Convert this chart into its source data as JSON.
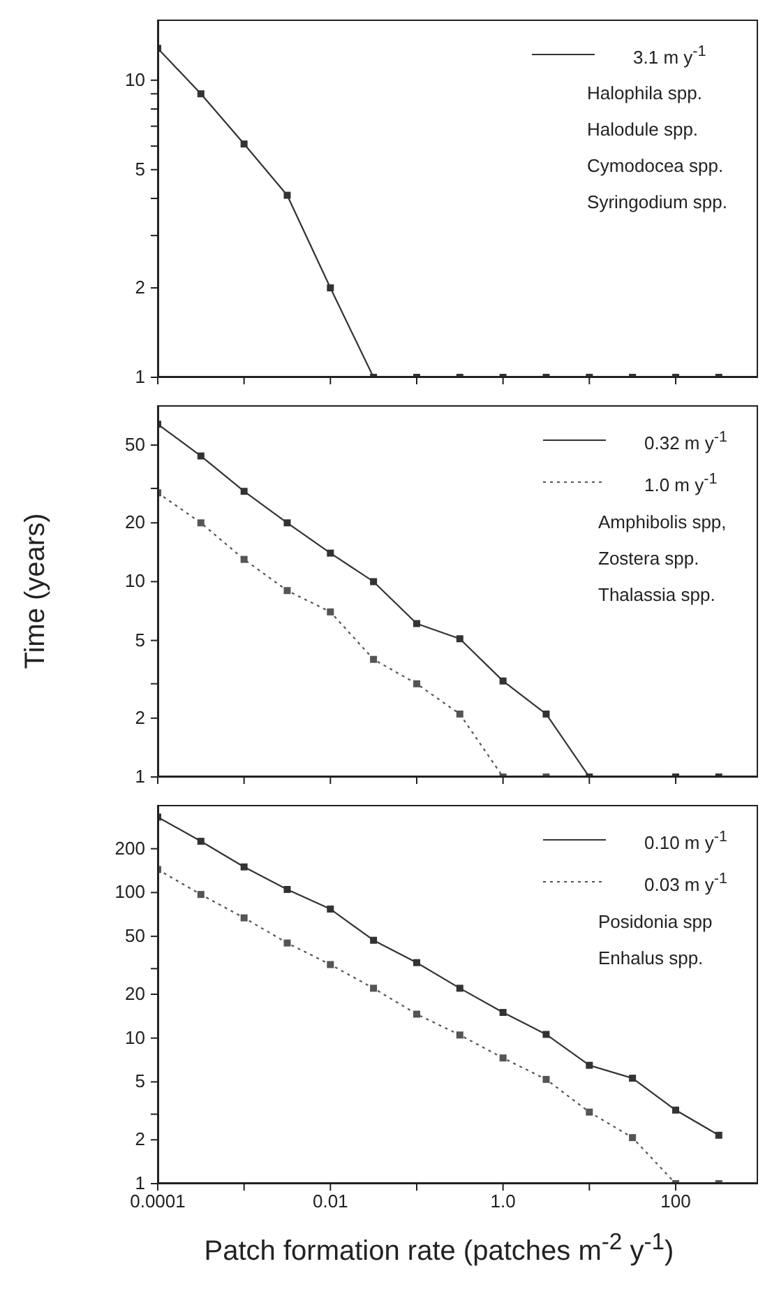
{
  "chart_data": [
    {
      "type": "line",
      "x": [
        0.0001,
        0.000316,
        0.001,
        0.00316,
        0.01,
        0.0316,
        0.1,
        0.316,
        1,
        3.16,
        10,
        31.6,
        100,
        316
      ],
      "xlim": [
        0.0001,
        900
      ],
      "xticks": [
        {
          "value": 0.0001,
          "label": null
        },
        {
          "value": 0.001,
          "label": null
        },
        {
          "value": 0.01,
          "label": null
        },
        {
          "value": 0.1,
          "label": null
        },
        {
          "value": 1,
          "label": null
        },
        {
          "value": 10,
          "label": null
        },
        {
          "value": 100,
          "label": null
        }
      ],
      "ylim": [
        1,
        16
      ],
      "yticks": [
        1,
        2,
        {
          "value": 3,
          "label": null
        },
        {
          "value": 4,
          "label": null
        },
        5,
        {
          "value": 6,
          "label": null
        },
        {
          "value": 7,
          "label": null
        },
        {
          "value": 8,
          "label": null
        },
        {
          "value": 9,
          "label": null
        },
        10
      ],
      "log": "xy",
      "tick_labels": "y",
      "marker": "square",
      "legend": "top right",
      "series": [
        {
          "name": "3.1 m y$^{-1}$",
          "color": "#333333",
          "line_style": "solid",
          "values": [
            12.8,
            9.0,
            6.1,
            4.1,
            2.0,
            1,
            1,
            1,
            1,
            1,
            1,
            1,
            1,
            1
          ]
        }
      ],
      "annotations": [
        "Halophila spp.",
        "Halodule spp.",
        "Cymodocea spp.",
        "Syringodium spp."
      ]
    },
    {
      "type": "line",
      "x": [
        0.0001,
        0.000316,
        0.001,
        0.00316,
        0.01,
        0.0316,
        0.1,
        0.316,
        1,
        3.16,
        10,
        31.6,
        100,
        316
      ],
      "xlim": [
        0.0001,
        900
      ],
      "xticks": [
        {
          "value": 0.0001,
          "label": null
        },
        {
          "value": 0.001,
          "label": null
        },
        {
          "value": 0.01,
          "label": null
        },
        {
          "value": 0.1,
          "label": null
        },
        {
          "value": 1,
          "label": null
        },
        {
          "value": 10,
          "label": null
        },
        {
          "value": 100,
          "label": null
        }
      ],
      "ylim": [
        1,
        80
      ],
      "yticks": [
        1,
        2,
        {
          "value": 3,
          "label": null
        },
        5,
        10,
        20,
        {
          "value": 30,
          "label": null
        },
        50
      ],
      "log": "xy",
      "tick_labels": "y",
      "marker": "square",
      "legend": "top right",
      "ylabel": "Time (years)",
      "series": [
        {
          "name": "0.32 m y$^{-1}$",
          "color": "#333333",
          "line_style": "solid",
          "values": [
            64,
            44,
            29,
            20,
            14,
            10,
            6.1,
            5.1,
            3.1,
            2.1,
            1,
            null,
            1,
            1
          ]
        },
        {
          "name": "1.0 m y$^{-1}$",
          "color": "#555555",
          "line_style": "dotted",
          "values": [
            28.5,
            20,
            13,
            9.0,
            7.0,
            4.0,
            3.0,
            2.1,
            1,
            1,
            null,
            null,
            null,
            null
          ]
        }
      ],
      "annotations": [
        "Amphibolis spp,",
        "Zostera spp.",
        "Thalassia spp."
      ]
    },
    {
      "type": "line",
      "x": [
        0.0001,
        0.000316,
        0.001,
        0.00316,
        0.01,
        0.0316,
        0.1,
        0.316,
        1,
        3.16,
        10,
        31.6,
        100,
        316
      ],
      "xlim": [
        0.0001,
        900
      ],
      "xticks": [
        {
          "value": 0.0001,
          "label": "0.0001"
        },
        {
          "value": 0.001,
          "label": null
        },
        {
          "value": 0.01,
          "label": "0.01"
        },
        {
          "value": 0.1,
          "label": null
        },
        {
          "value": 1,
          "label": "1.0"
        },
        {
          "value": 10,
          "label": null
        },
        {
          "value": 100,
          "label": "100"
        }
      ],
      "ylim": [
        1,
        400
      ],
      "yticks": [
        1,
        2,
        {
          "value": 3,
          "label": null
        },
        5,
        10,
        20,
        {
          "value": 30,
          "label": null
        },
        50,
        100,
        200
      ],
      "log": "xy",
      "marker": "square",
      "legend": "top right",
      "xlabel": "Patch formation rate (patches m$^{-2}$ y$^{-1}$)",
      "series": [
        {
          "name": "0.10 m y$^{-1}$",
          "color": "#333333",
          "line_style": "solid",
          "values": [
            330,
            225,
            150,
            105,
            77,
            47,
            33,
            22,
            15,
            10.6,
            6.5,
            5.3,
            3.2,
            2.15
          ]
        },
        {
          "name": "0.03 m y$^{-1}$",
          "color": "#555555",
          "line_style": "dotted",
          "values": [
            144,
            97,
            67,
            45,
            32,
            22,
            14.6,
            10.5,
            7.3,
            5.2,
            3.1,
            2.07,
            1,
            1
          ]
        }
      ],
      "annotations": [
        "Posidonia spp",
        "Enhalus spp."
      ]
    }
  ]
}
